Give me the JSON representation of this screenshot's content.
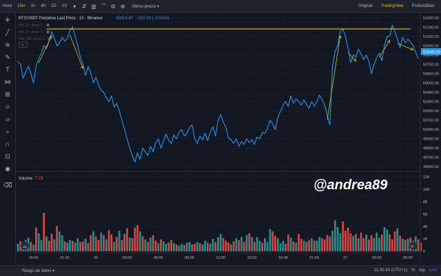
{
  "toolbar": {
    "timeframes": [
      "Hora",
      "15m",
      "1h",
      "4h",
      "1D",
      "1S"
    ],
    "active_timeframe": "15m",
    "dropdown_label": "Último precio",
    "views": [
      "Original",
      "TradingView",
      "Profundidad"
    ],
    "active_view": "TradingView",
    "icons": [
      "chevron-down-icon",
      "indicators-icon",
      "bar-style-icon",
      "line-style-icon",
      "settings-icon",
      "add-icon"
    ]
  },
  "legend": {
    "title": "BTCUSDT Perpetuo Last Price · 15 · Binance",
    "last": "43814.87",
    "change": "−222.28 (−0.51%)",
    "ma_lines": [
      "MA 10 close 0",
      "MA 20 close 0",
      "MA 100 close 0"
    ]
  },
  "volume_legend": {
    "label": "Volume",
    "value": "7.7K"
  },
  "watermark": "@andrea89",
  "price_label": "50846.50",
  "bottom": {
    "range_label": "Rango de datos",
    "time": "21:42:43 (UTC+1)",
    "percent": "%",
    "log": "log",
    "auto": "auto"
  },
  "colors": {
    "line": "#2196f3",
    "annotation": "#f5e400",
    "arrow": "#e0c000",
    "vol_up": "#26a69a",
    "vol_down": "#ef5350",
    "accent": "#f0b90b"
  },
  "chart_data": [
    {
      "type": "line",
      "title": "BTCUSDT Perpetuo Last Price · 15 · Binance",
      "xlabel": "",
      "ylabel": "",
      "ylim": [
        49550,
        51250
      ],
      "yticks": [
        51200,
        51100,
        51000,
        50900,
        50800,
        50700,
        50600,
        50500,
        50400,
        50300,
        50200,
        50100,
        50000,
        49900,
        49800,
        49700,
        49600
      ],
      "xticks": [
        "18:00",
        "21:00",
        "26",
        "03:00",
        "06:00",
        "09:00",
        "12:00",
        "15:00",
        "18:00",
        "21:00",
        "27",
        "03:00",
        "06:00"
      ],
      "x_tick_index": [
        6,
        18,
        30,
        42,
        54,
        66,
        78,
        90,
        102,
        114,
        126,
        138,
        150
      ],
      "values": [
        50730,
        50700,
        50550,
        50620,
        50680,
        50600,
        50500,
        50680,
        50760,
        50820,
        50900,
        50870,
        50950,
        51050,
        50980,
        50900,
        50930,
        50990,
        50950,
        50980,
        51060,
        51100,
        51000,
        50900,
        50780,
        50700,
        50580,
        50680,
        50610,
        50500,
        50560,
        50480,
        50420,
        50400,
        50340,
        50300,
        50360,
        50240,
        50280,
        50200,
        50100,
        50000,
        49900,
        49800,
        49720,
        49650,
        49750,
        49680,
        49800,
        49760,
        49720,
        49820,
        49760,
        49860,
        49900,
        49800,
        49880,
        49950,
        49880,
        49850,
        49940,
        49900,
        49970,
        50000,
        49930,
        49960,
        50020,
        50050,
        49900,
        49850,
        49930,
        49890,
        49960,
        49880,
        49970,
        50030,
        49930,
        50100,
        50160,
        50080,
        50020,
        49910,
        49890,
        49850,
        49900,
        49820,
        49870,
        49840,
        49900,
        49860,
        49890,
        49840,
        49920,
        49900,
        49970,
        49960,
        50010,
        50100,
        50060,
        50000,
        50130,
        50200,
        50260,
        50300,
        50250,
        50360,
        50280,
        50330,
        50300,
        50260,
        50320,
        50270,
        50230,
        50300,
        50250,
        50300,
        50370,
        50320,
        50260,
        50150,
        50050,
        50680,
        50840,
        50900,
        51050,
        51080,
        51000,
        50870,
        50720,
        50800,
        50780,
        50860,
        50810,
        50750,
        50800,
        50730,
        50600,
        50700,
        50770,
        50820,
        50740,
        50900,
        51000,
        51000,
        51120,
        51050,
        50970,
        50880,
        50990,
        50930,
        50970,
        50940,
        50900,
        50830,
        50760
      ],
      "annotations": {
        "horizontal_line_price": 51080
      }
    },
    {
      "type": "bar",
      "title": "Volume",
      "ylim": [
        0,
        12000
      ],
      "yticks": [
        "12K",
        "10K",
        "8K",
        "6K",
        "4K",
        "2K",
        "0"
      ],
      "ytick_values": [
        12000,
        10000,
        8000,
        6000,
        4000,
        2000,
        0
      ],
      "values": [
        1200,
        1600,
        900,
        1800,
        2200,
        1500,
        1100,
        3800,
        2900,
        1800,
        6200,
        2400,
        1700,
        2800,
        1900,
        4100,
        3200,
        2600,
        1600,
        1400,
        1800,
        1700,
        1400,
        2100,
        1500,
        1600,
        2000,
        1300,
        2600,
        3200,
        2400,
        1800,
        3000,
        2600,
        1900,
        3400,
        2700,
        1500,
        2300,
        3300,
        1800,
        2800,
        3700,
        2200,
        2100,
        3800,
        4200,
        3200,
        2400,
        1900,
        1500,
        2200,
        2600,
        1700,
        1300,
        1900,
        1600,
        1200,
        1400,
        1800,
        1300,
        1100,
        900,
        1200,
        1000,
        1400,
        1500,
        1100,
        1200,
        1500,
        1300,
        1100,
        1700,
        1400,
        1200,
        2000,
        1500,
        2300,
        2800,
        2100,
        1700,
        1400,
        1100,
        1600,
        2100,
        1800,
        2300,
        1500,
        2600,
        2900,
        2300,
        1500,
        2300,
        1700,
        1400,
        2100,
        1500,
        3600,
        3200,
        2500,
        2100,
        1300,
        1700,
        1200,
        2700,
        2200,
        1600,
        1400,
        2800,
        2000,
        1700,
        1500,
        1800,
        2100,
        1700,
        1700,
        2300,
        2100,
        1900,
        2600,
        2400,
        3300,
        5000,
        3900,
        2900,
        4800,
        3300,
        3800,
        2900,
        2500,
        2800,
        2100,
        3000,
        2100,
        2700,
        1900,
        2600,
        2100,
        3000,
        2200,
        2700,
        3900,
        3500,
        2700,
        1900,
        3200,
        3700,
        2500,
        2000,
        1800,
        2000,
        2200,
        1700,
        2400,
        1900,
        1400
      ],
      "down": [
        0,
        1,
        0,
        0,
        0,
        1,
        0,
        1,
        0,
        0,
        1,
        0,
        1,
        1,
        0,
        1,
        0,
        0,
        1,
        0,
        0,
        1,
        0,
        0,
        1,
        1,
        0,
        1,
        1,
        0,
        1,
        1,
        0,
        1,
        0,
        1,
        1,
        0,
        1,
        0,
        1,
        1,
        1,
        0,
        1,
        1,
        1,
        0,
        1,
        0,
        1,
        0,
        1,
        1,
        0,
        1,
        0,
        0,
        1,
        1,
        0,
        1,
        0,
        0,
        1,
        0,
        0,
        1,
        1,
        0,
        1,
        0,
        0,
        1,
        0,
        0,
        1,
        0,
        0,
        1,
        1,
        1,
        0,
        1,
        0,
        1,
        0,
        1,
        0,
        1,
        0,
        1,
        0,
        0,
        1,
        0,
        0,
        0,
        1,
        1,
        0,
        0,
        0,
        1,
        1,
        0,
        1,
        0,
        1,
        1,
        0,
        1,
        1,
        0,
        1,
        0,
        0,
        1,
        1,
        1,
        1,
        0,
        0,
        0,
        0,
        1,
        1,
        1,
        1,
        0,
        1,
        0,
        1,
        1,
        0,
        1,
        1,
        0,
        0,
        0,
        1,
        0,
        0,
        1,
        1,
        1,
        0,
        1,
        0,
        1,
        0,
        1,
        0,
        0,
        1,
        1
      ]
    }
  ]
}
